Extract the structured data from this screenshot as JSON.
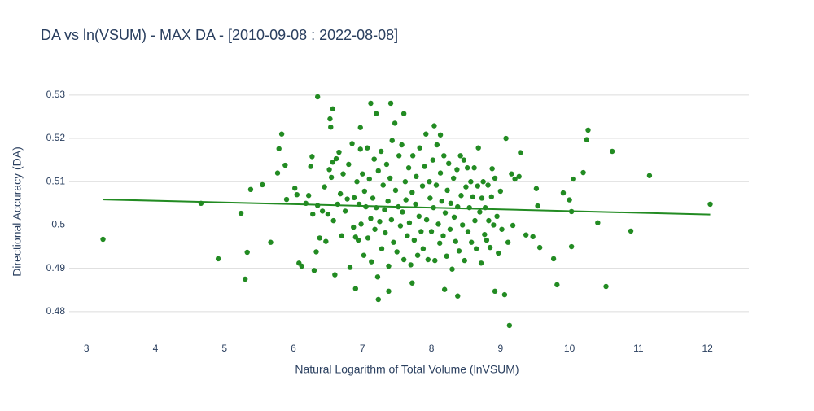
{
  "chart_data": {
    "type": "scatter",
    "title": "DA vs ln(VSUM) - MAX DA - [2010-09-08 : 2022-08-08]",
    "x_label": "Natural Logarithm of Total Volume (lnVSUM)",
    "y_label": "Directional Accuracy (DA)",
    "xlim": [
      2.75,
      12.6
    ],
    "ylim": [
      0.4749,
      0.5341
    ],
    "xticks": [
      3,
      4,
      5,
      6,
      7,
      8,
      9,
      10,
      11,
      12
    ],
    "yticks": [
      0.48,
      0.49,
      0.5,
      0.51,
      0.52,
      0.53
    ],
    "grid": "y",
    "color": "#228b22",
    "x": [
      3.24,
      4.66,
      4.91,
      5.24,
      5.3,
      5.33,
      5.38,
      5.55,
      5.67,
      5.77,
      5.79,
      5.83,
      5.88,
      5.9,
      6.35,
      6.57,
      6.53,
      6.54,
      7.12,
      7.41,
      7.6,
      7.2,
      6.97,
      8.04,
      8.13,
      10.27,
      10.25,
      10.62,
      11.16,
      10.2,
      10.06,
      9.91,
      10.0,
      10.03,
      10.41,
      10.89,
      12.04,
      10.53,
      9.82,
      10.03,
      9.77,
      9.13,
      9.06,
      8.92,
      7.23,
      7.38,
      6.9,
      7.72,
      8.19,
      8.38,
      9.08,
      9.29,
      9.52,
      9.54,
      9.57,
      9.47,
      9.37,
      9.16,
      9.21,
      9.27,
      9.11,
      9.18,
      6.02,
      6.05,
      6.08,
      6.12,
      6.18,
      6.22,
      6.25,
      6.27,
      6.28,
      6.3,
      6.33,
      6.35,
      6.38,
      6.42,
      6.45,
      6.47,
      6.5,
      6.52,
      6.55,
      6.57,
      6.58,
      6.6,
      6.62,
      6.64,
      6.66,
      6.68,
      6.7,
      6.72,
      6.75,
      6.78,
      6.8,
      6.82,
      6.85,
      6.87,
      6.88,
      6.9,
      6.92,
      6.94,
      6.95,
      6.97,
      6.98,
      7.0,
      7.02,
      7.03,
      7.05,
      7.07,
      7.08,
      7.1,
      7.12,
      7.13,
      7.15,
      7.17,
      7.18,
      7.2,
      7.22,
      7.23,
      7.25,
      7.27,
      7.28,
      7.3,
      7.32,
      7.33,
      7.35,
      7.37,
      7.38,
      7.4,
      7.42,
      7.43,
      7.45,
      7.47,
      7.48,
      7.5,
      7.52,
      7.53,
      7.55,
      7.57,
      7.58,
      7.6,
      7.62,
      7.63,
      7.65,
      7.67,
      7.68,
      7.7,
      7.72,
      7.73,
      7.75,
      7.77,
      7.78,
      7.8,
      7.82,
      7.83,
      7.85,
      7.87,
      7.88,
      7.9,
      7.92,
      7.93,
      7.95,
      7.97,
      7.98,
      8.0,
      8.02,
      8.03,
      8.05,
      8.07,
      8.08,
      8.1,
      8.12,
      8.13,
      8.15,
      8.17,
      8.18,
      8.2,
      8.22,
      8.23,
      8.25,
      8.27,
      8.28,
      8.3,
      8.32,
      8.33,
      8.35,
      8.37,
      8.38,
      8.4,
      8.42,
      8.43,
      8.45,
      8.47,
      8.48,
      8.5,
      8.52,
      8.53,
      8.55,
      8.57,
      8.58,
      8.6,
      8.62,
      8.63,
      8.65,
      8.67,
      8.68,
      8.7,
      8.72,
      8.73,
      8.75,
      8.77,
      8.78,
      8.8,
      8.82,
      8.83,
      8.85,
      8.87,
      8.88,
      8.9,
      8.92,
      8.95,
      8.97,
      9.0,
      9.02
    ],
    "y": [
      0.4967,
      0.505,
      0.4922,
      0.5027,
      0.4875,
      0.4937,
      0.5082,
      0.5093,
      0.496,
      0.512,
      0.5176,
      0.521,
      0.5138,
      0.5059,
      0.5296,
      0.5268,
      0.5245,
      0.5226,
      0.5281,
      0.5281,
      0.5257,
      0.5257,
      0.5225,
      0.5229,
      0.5208,
      0.5219,
      0.5197,
      0.517,
      0.5114,
      0.5121,
      0.5106,
      0.5074,
      0.5058,
      0.5031,
      0.5005,
      0.4986,
      0.5048,
      0.4858,
      0.4862,
      0.495,
      0.4922,
      0.4768,
      0.4839,
      0.4847,
      0.4828,
      0.4847,
      0.4853,
      0.4866,
      0.4851,
      0.4836,
      0.52,
      0.5167,
      0.5084,
      0.5044,
      0.4948,
      0.4973,
      0.4977,
      0.5118,
      0.5106,
      0.5112,
      0.496,
      0.4999,
      0.5085,
      0.507,
      0.4912,
      0.4905,
      0.505,
      0.5068,
      0.5135,
      0.5158,
      0.5025,
      0.4895,
      0.4938,
      0.5045,
      0.497,
      0.5032,
      0.5088,
      0.4962,
      0.5025,
      0.5128,
      0.511,
      0.5145,
      0.501,
      0.4885,
      0.5153,
      0.5048,
      0.5168,
      0.5072,
      0.4975,
      0.5118,
      0.5032,
      0.506,
      0.514,
      0.4902,
      0.5188,
      0.4995,
      0.5063,
      0.4972,
      0.51,
      0.4965,
      0.5048,
      0.5175,
      0.5002,
      0.5118,
      0.493,
      0.5078,
      0.5042,
      0.5178,
      0.497,
      0.5106,
      0.5015,
      0.4915,
      0.5062,
      0.5152,
      0.499,
      0.504,
      0.488,
      0.5125,
      0.5008,
      0.517,
      0.4945,
      0.5092,
      0.5035,
      0.4982,
      0.514,
      0.5055,
      0.4905,
      0.5108,
      0.5012,
      0.5195,
      0.496,
      0.5235,
      0.508,
      0.4938,
      0.5042,
      0.516,
      0.4998,
      0.5185,
      0.503,
      0.492,
      0.51,
      0.5058,
      0.4975,
      0.5132,
      0.5005,
      0.4908,
      0.5075,
      0.516,
      0.4965,
      0.5048,
      0.5112,
      0.493,
      0.502,
      0.5178,
      0.4985,
      0.509,
      0.4945,
      0.5135,
      0.521,
      0.5012,
      0.492,
      0.51,
      0.5062,
      0.4985,
      0.515,
      0.504,
      0.4918,
      0.5092,
      0.5185,
      0.5002,
      0.4958,
      0.512,
      0.5055,
      0.4975,
      0.516,
      0.5028,
      0.4928,
      0.508,
      0.5142,
      0.499,
      0.505,
      0.4898,
      0.5108,
      0.5018,
      0.4962,
      0.5128,
      0.5042,
      0.494,
      0.516,
      0.5068,
      0.5,
      0.515,
      0.4918,
      0.5088,
      0.5132,
      0.4985,
      0.504,
      0.51,
      0.496,
      0.5065,
      0.5132,
      0.501,
      0.4945,
      0.509,
      0.5178,
      0.503,
      0.4912,
      0.5062,
      0.51,
      0.4978,
      0.504,
      0.4965,
      0.5092,
      0.501,
      0.4948,
      0.5065,
      0.513,
      0.5,
      0.5108,
      0.502,
      0.4935,
      0.5078,
      0.499
    ],
    "trend_line": {
      "x": [
        3.24,
        12.04
      ],
      "y": [
        0.5059,
        0.5024
      ],
      "color": "#228b22"
    }
  }
}
